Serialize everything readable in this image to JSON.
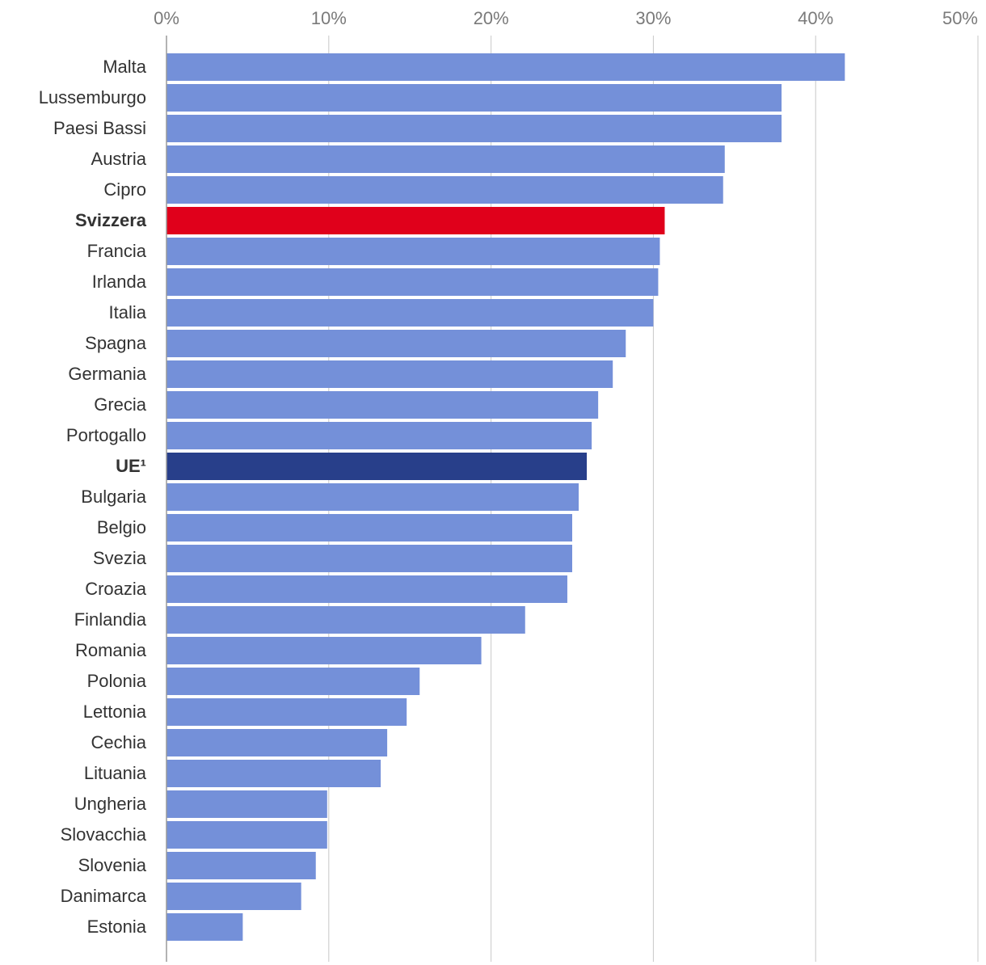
{
  "chart_data": {
    "type": "bar",
    "orientation": "horizontal",
    "title": "",
    "xlabel": "",
    "ylabel": "",
    "xlim": [
      0,
      50
    ],
    "ticks": [
      0,
      10,
      20,
      30,
      40,
      50
    ],
    "tick_labels": [
      "0%",
      "10%",
      "20%",
      "30%",
      "40%",
      "50%"
    ],
    "grid": true,
    "colors": {
      "default": "#7490d9",
      "highlight_switzerland": "#e0001b",
      "highlight_eu": "#283f8a"
    },
    "categories": [
      "Malta",
      "Lussemburgo",
      "Paesi Bassi",
      "Austria",
      "Cipro",
      "Svizzera",
      "Francia",
      "Irlanda",
      "Italia",
      "Spagna",
      "Germania",
      "Grecia",
      "Portogallo",
      "UE¹",
      "Bulgaria",
      "Belgio",
      "Svezia",
      "Croazia",
      "Finlandia",
      "Romania",
      "Polonia",
      "Lettonia",
      "Cechia",
      "Lituania",
      "Ungheria",
      "Slovacchia",
      "Slovenia",
      "Danimarca",
      "Estonia"
    ],
    "values": [
      41.8,
      37.9,
      37.9,
      34.4,
      34.3,
      30.7,
      30.4,
      30.3,
      30.0,
      28.3,
      27.5,
      26.6,
      26.2,
      25.9,
      25.4,
      25.0,
      25.0,
      24.7,
      22.1,
      19.4,
      15.6,
      14.8,
      13.6,
      13.2,
      9.9,
      9.9,
      9.2,
      8.3,
      4.7
    ],
    "highlighted": {
      "Svizzera": "highlight_switzerland",
      "UE¹": "highlight_eu"
    },
    "bold_labels": [
      "Svizzera",
      "UE¹"
    ]
  }
}
